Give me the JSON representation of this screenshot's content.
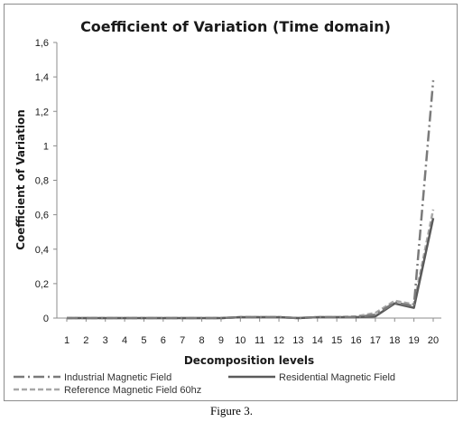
{
  "caption": "Figure 3.",
  "chart_data": {
    "type": "line",
    "title": "Coefficient of Variation (Time domain)",
    "xlabel": "Decomposition levels",
    "ylabel": "Coefficient of Variation",
    "categories": [
      "1",
      "2",
      "3",
      "4",
      "5",
      "6",
      "7",
      "8",
      "9",
      "10",
      "11",
      "12",
      "13",
      "14",
      "15",
      "16",
      "17",
      "18",
      "19",
      "20"
    ],
    "ylim": [
      0,
      1.6
    ],
    "yticks": [
      0,
      0.2,
      0.4,
      0.6,
      0.8,
      1,
      1.2,
      1.4,
      1.6
    ],
    "ytick_labels": [
      "0",
      "0,2",
      "0,4",
      "0,6",
      "0,8",
      "1",
      "1,2",
      "1,4",
      "1,6"
    ],
    "grid": false,
    "legend_position": "bottom",
    "series": [
      {
        "name": "Industrial Magnetic Field",
        "style": "dash-dot",
        "color": "#7a7a7a",
        "values": [
          0,
          0,
          0,
          0,
          0,
          0,
          0,
          0,
          0,
          0.005,
          0.005,
          0.005,
          0,
          0.005,
          0.005,
          0.005,
          0.02,
          0.09,
          0.07,
          1.38
        ]
      },
      {
        "name": "Residential Magnetic Field",
        "style": "solid",
        "color": "#5a5a5a",
        "values": [
          0,
          0,
          0,
          0,
          0,
          0,
          0,
          0,
          0,
          0.005,
          0.005,
          0.005,
          0,
          0.005,
          0.005,
          0.005,
          0.01,
          0.085,
          0.06,
          0.58
        ]
      },
      {
        "name": "Reference Magnetic Field 60hz",
        "style": "dashed",
        "color": "#a8a8a8",
        "values": [
          0,
          0,
          0,
          0,
          0,
          0,
          0,
          0,
          0,
          0.005,
          0.005,
          0.005,
          0,
          0.005,
          0.005,
          0.01,
          0.03,
          0.1,
          0.08,
          0.63
        ]
      }
    ]
  }
}
